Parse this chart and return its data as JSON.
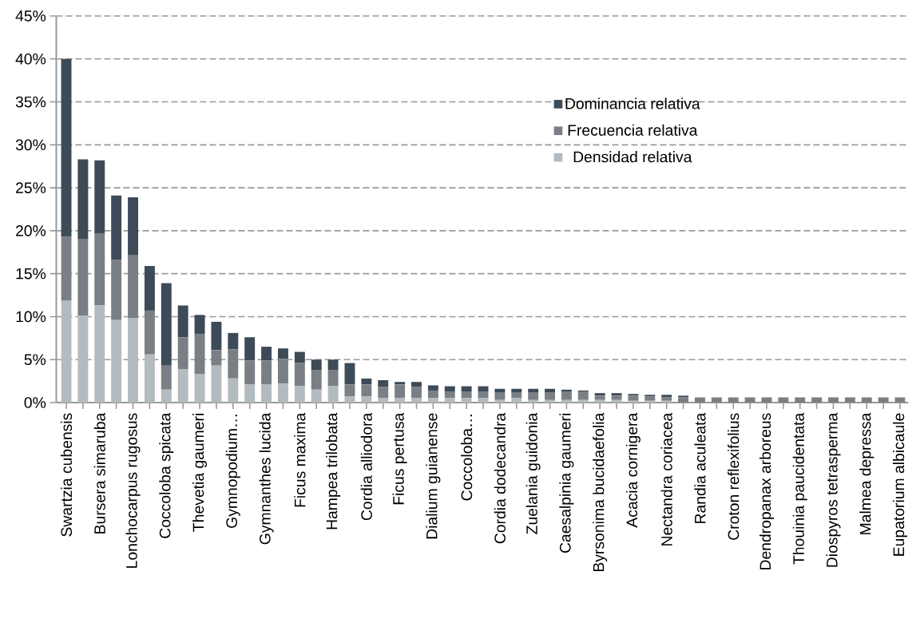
{
  "chart_data": {
    "type": "bar",
    "stacked": true,
    "categories": [
      "Swartzia cubensis",
      null,
      "Bursera simaruba",
      null,
      "Lonchocarpus rugosus",
      null,
      "Coccoloba spicata",
      null,
      "Thevetia gaumeri",
      null,
      "Gymnopodium…",
      null,
      "Gymnanthes lucida",
      null,
      "Ficus maxima",
      null,
      "Hampea trilobata",
      null,
      "Cordia alliodora",
      null,
      "Ficus pertusa",
      null,
      "Dialium guianense",
      null,
      "Coccoloba…",
      null,
      "Cordia dodecandra",
      null,
      "Zuelania guidonia",
      null,
      "Caesalpinia gaumeri",
      null,
      "Byrsonima bucidaefolia",
      null,
      "Acacia cornigera",
      null,
      "Nectandra coriacea",
      null,
      "Randia aculeata",
      null,
      "Croton reflexifolius",
      null,
      "Dendropanax arboreus",
      null,
      "Thouinia paucidentata",
      null,
      "Diospyros tetrasperma",
      null,
      "Malmea depressa",
      null,
      "Eupatorium albicaule"
    ],
    "series": [
      {
        "name": "Densidad relativa",
        "color": "#b2bbbf",
        "values": [
          11.9,
          10.1,
          11.3,
          9.6,
          9.8,
          5.6,
          1.5,
          3.9,
          3.3,
          4.3,
          2.8,
          2.1,
          2.1,
          2.2,
          1.9,
          1.5,
          1.9,
          0.7,
          0.7,
          0.5,
          0.5,
          0.5,
          0.5,
          0.5,
          0.5,
          0.5,
          0.3,
          0.5,
          0.3,
          0.3,
          0.3,
          0.3,
          0.3,
          0.3,
          0.2,
          0.2,
          0.2,
          0,
          0,
          0,
          0,
          0,
          0,
          0,
          0,
          0,
          0,
          0,
          0,
          0,
          0
        ]
      },
      {
        "name": "Frecuencia relativa",
        "color": "#7a7f85",
        "values": [
          7.4,
          8.9,
          8.4,
          7.0,
          7.4,
          5.1,
          2.8,
          3.7,
          4.7,
          1.8,
          3.4,
          2.8,
          2.8,
          2.9,
          2.7,
          2.3,
          1.9,
          1.4,
          1.4,
          1.3,
          1.6,
          1.3,
          0.9,
          0.8,
          0.8,
          0.8,
          0.9,
          0.7,
          0.9,
          0.9,
          1.0,
          1.0,
          0.5,
          0.5,
          0.6,
          0.5,
          0.4,
          0.6,
          0.6,
          0.6,
          0.6,
          0.6,
          0.6,
          0.6,
          0.6,
          0.6,
          0.6,
          0.6,
          0.6,
          0.6,
          0.6
        ]
      },
      {
        "name": "Dominancia relativa",
        "color": "#3d4b58",
        "values": [
          20.7,
          9.3,
          8.5,
          7.5,
          6.7,
          5.2,
          9.6,
          3.7,
          2.2,
          3.3,
          1.9,
          2.7,
          1.6,
          1.2,
          1.3,
          1.2,
          1.2,
          2.5,
          0.7,
          0.8,
          0.3,
          0.6,
          0.6,
          0.6,
          0.6,
          0.6,
          0.4,
          0.4,
          0.4,
          0.4,
          0.2,
          0.1,
          0.3,
          0.3,
          0.2,
          0.2,
          0.3,
          0.2,
          0,
          0,
          0,
          0,
          0,
          0,
          0,
          0,
          0,
          0,
          0,
          0,
          0
        ]
      }
    ],
    "ylim": [
      0,
      45
    ],
    "yticks": [
      {
        "value": 0,
        "label": "0%"
      },
      {
        "value": 5,
        "label": "5%"
      },
      {
        "value": 10,
        "label": "10%"
      },
      {
        "value": 15,
        "label": "15%"
      },
      {
        "value": 20,
        "label": "20%"
      },
      {
        "value": 25,
        "label": "25%"
      },
      {
        "value": 30,
        "label": "30%"
      },
      {
        "value": 35,
        "label": "35%"
      },
      {
        "value": 40,
        "label": "40%"
      },
      {
        "value": 45,
        "label": "45%"
      }
    ],
    "grid": "y",
    "legend": "top right"
  }
}
